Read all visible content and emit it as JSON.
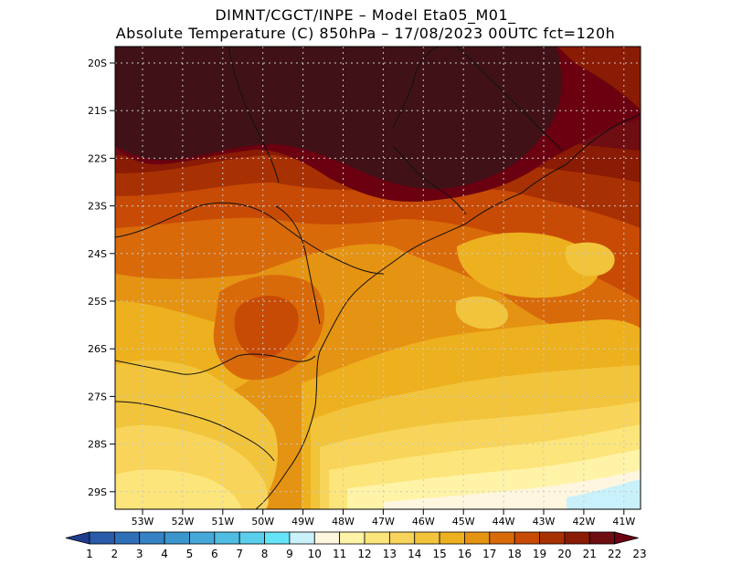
{
  "header": {
    "line1": "DIMNT/CGCT/INPE –  Model Eta05_M01_",
    "line2": "Absolute Temperature (C) 850hPa –  17/08/2023 00UTC fct=120h"
  },
  "map": {
    "lat_labels": [
      "20S",
      "21S",
      "22S",
      "23S",
      "24S",
      "25S",
      "26S",
      "27S",
      "28S",
      "29S"
    ],
    "lon_labels": [
      "53W",
      "52W",
      "51W",
      "50W",
      "49W",
      "48W",
      "47W",
      "46W",
      "45W",
      "44W",
      "43W",
      "42W",
      "41W"
    ]
  },
  "colorbar": {
    "labels": [
      "1",
      "2",
      "3",
      "4",
      "5",
      "6",
      "7",
      "8",
      "9",
      "10",
      "11",
      "12",
      "13",
      "14",
      "15",
      "16",
      "17",
      "18",
      "19",
      "20",
      "21",
      "22",
      "23"
    ],
    "colors": [
      "#1f3d8f",
      "#2a5aa8",
      "#2f6fb8",
      "#3582c4",
      "#3c96ce",
      "#45a8d8",
      "#4fbce2",
      "#5acfec",
      "#66e4f7",
      "#c9f1fb",
      "#fff6df",
      "#fff3a8",
      "#fce57a",
      "#f8d55a",
      "#f1c43b",
      "#edb01f",
      "#e59312",
      "#d96a0a",
      "#c84b05",
      "#a83103",
      "#8a1b04",
      "#6e0d12",
      "#6a0010"
    ]
  },
  "colors": {
    "dark_core": "#401218",
    "deep_red": "#6a0010",
    "grid": "#c8c8c8"
  }
}
